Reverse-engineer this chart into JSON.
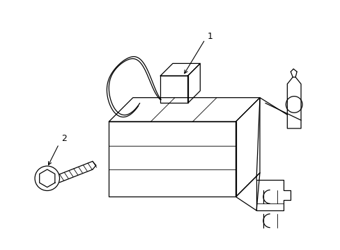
{
  "background_color": "#ffffff",
  "line_color": "#000000",
  "lw": 0.9,
  "tlw": 0.6,
  "label_1": "1",
  "label_2": "2",
  "label_fontsize": 9
}
